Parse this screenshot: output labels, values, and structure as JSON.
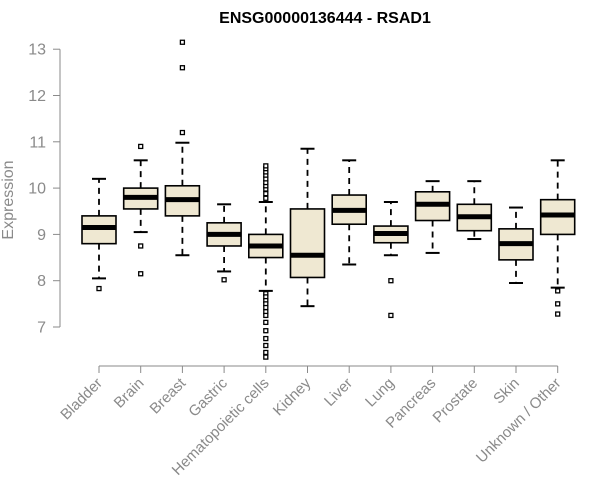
{
  "chart_data": {
    "type": "boxplot",
    "title": "ENSG00000136444 - RSAD1",
    "xlabel": "",
    "ylabel": "Expression",
    "ylim": [
      6.2,
      13.3
    ],
    "yticks": [
      7,
      8,
      9,
      10,
      11,
      12,
      13
    ],
    "categories": [
      "Bladder",
      "Brain",
      "Breast",
      "Gastric",
      "Hematopoietic cells",
      "Kidney",
      "Liver",
      "Lung",
      "Pancreas",
      "Prostate",
      "Skin",
      "Unknown / Other"
    ],
    "boxes": [
      {
        "category": "Bladder",
        "whisker_low": 8.05,
        "q1": 8.8,
        "median": 9.15,
        "q3": 9.4,
        "whisker_high": 10.2,
        "outliers": [
          7.83
        ]
      },
      {
        "category": "Brain",
        "whisker_low": 9.05,
        "q1": 9.55,
        "median": 9.8,
        "q3": 10.0,
        "whisker_high": 10.6,
        "outliers": [
          10.9,
          8.75,
          8.15
        ]
      },
      {
        "category": "Breast",
        "whisker_low": 8.55,
        "q1": 9.4,
        "median": 9.75,
        "q3": 10.05,
        "whisker_high": 10.98,
        "outliers": [
          11.2,
          12.6,
          13.15
        ]
      },
      {
        "category": "Gastric",
        "whisker_low": 8.2,
        "q1": 8.75,
        "median": 9.0,
        "q3": 9.25,
        "whisker_high": 9.65,
        "outliers": [
          8.02
        ]
      },
      {
        "category": "Hematopoietic cells",
        "whisker_low": 7.78,
        "q1": 8.5,
        "median": 8.75,
        "q3": 9.0,
        "whisker_high": 9.7,
        "outliers": [
          9.78,
          9.88,
          9.98,
          10.05,
          10.12,
          10.2,
          10.28,
          10.35,
          10.42,
          10.48,
          7.72,
          7.65,
          7.57,
          7.5,
          7.42,
          7.33,
          7.25,
          7.1,
          6.92,
          6.75,
          6.6,
          6.45,
          6.35
        ]
      },
      {
        "category": "Kidney",
        "whisker_low": 7.45,
        "q1": 8.07,
        "median": 8.55,
        "q3": 9.55,
        "whisker_high": 10.85,
        "outliers": []
      },
      {
        "category": "Liver",
        "whisker_low": 8.35,
        "q1": 9.22,
        "median": 9.52,
        "q3": 9.85,
        "whisker_high": 10.6,
        "outliers": []
      },
      {
        "category": "Lung",
        "whisker_low": 8.55,
        "q1": 8.82,
        "median": 9.02,
        "q3": 9.18,
        "whisker_high": 9.7,
        "outliers": [
          8.0,
          7.25
        ]
      },
      {
        "category": "Pancreas",
        "whisker_low": 8.6,
        "q1": 9.3,
        "median": 9.65,
        "q3": 9.92,
        "whisker_high": 10.15,
        "outliers": []
      },
      {
        "category": "Prostate",
        "whisker_low": 8.9,
        "q1": 9.08,
        "median": 9.38,
        "q3": 9.65,
        "whisker_high": 10.15,
        "outliers": []
      },
      {
        "category": "Skin",
        "whisker_low": 7.95,
        "q1": 8.45,
        "median": 8.8,
        "q3": 9.12,
        "whisker_high": 9.58,
        "outliers": []
      },
      {
        "category": "Unknown / Other",
        "whisker_low": 7.85,
        "q1": 9.0,
        "median": 9.42,
        "q3": 9.75,
        "whisker_high": 10.6,
        "outliers": [
          7.78,
          7.5,
          7.28
        ]
      }
    ],
    "grid": false,
    "legend": "none"
  }
}
